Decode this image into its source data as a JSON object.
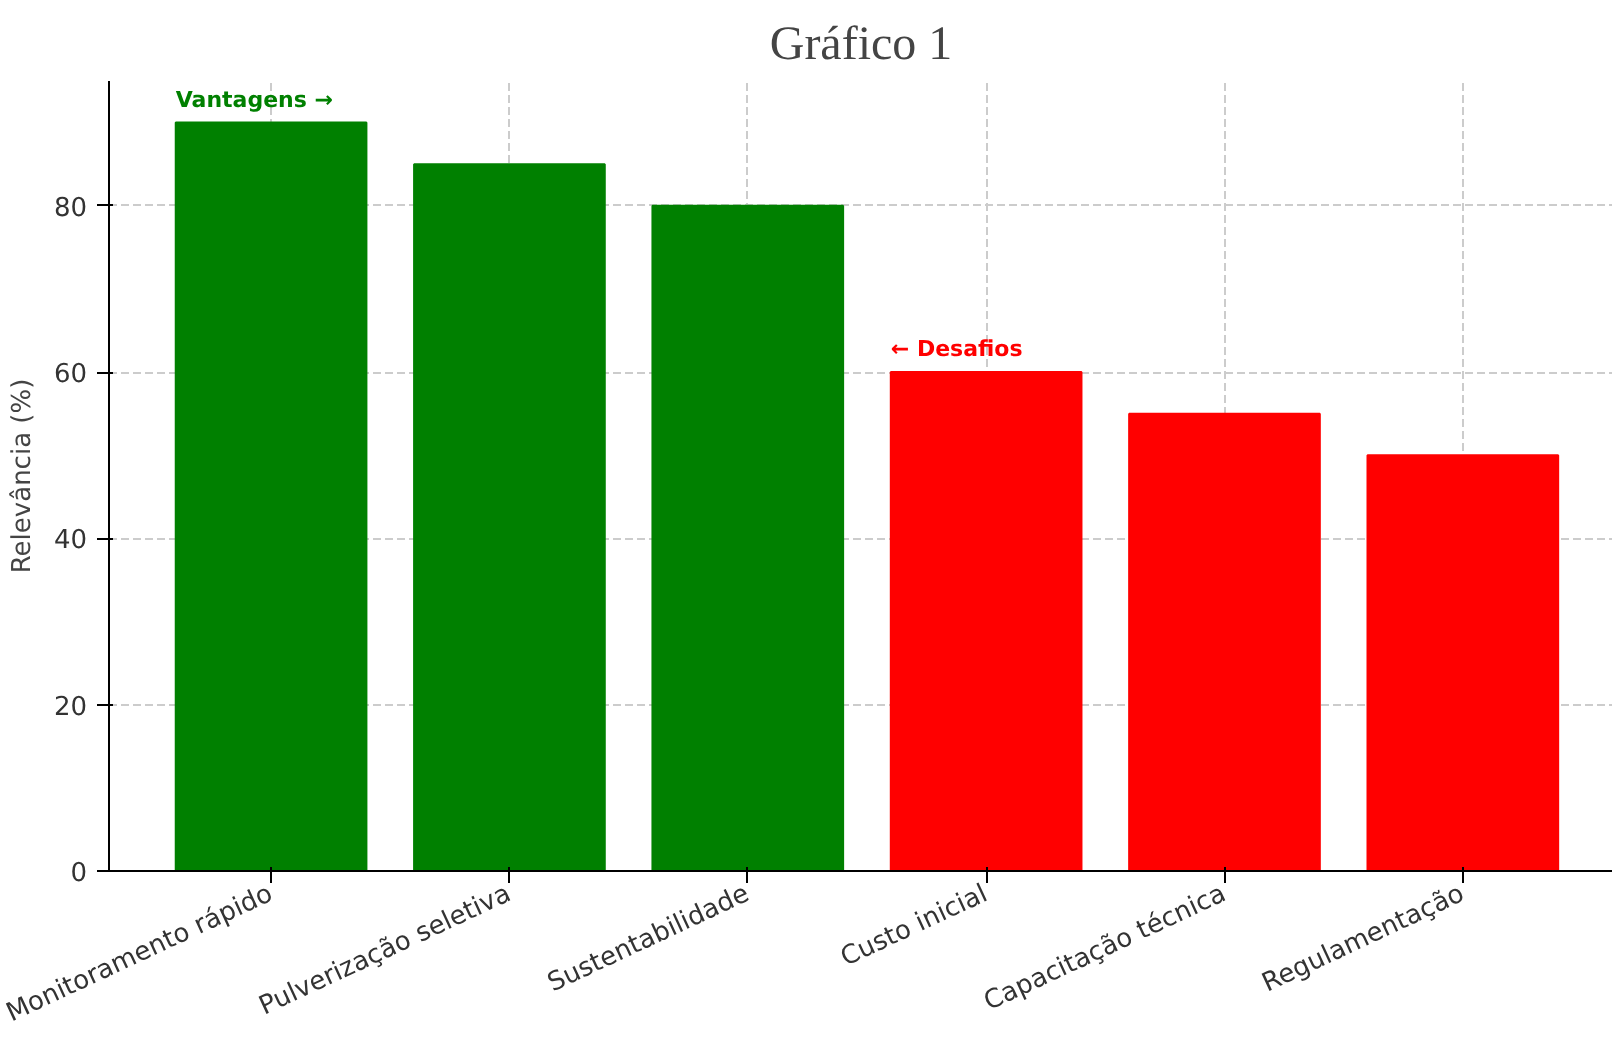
{
  "chart_data": {
    "type": "bar",
    "title": "Gráfico 1",
    "ylabel": "Relevância (%)",
    "categories": [
      "Monitoramento rápido",
      "Pulverização seletiva",
      "Sustentabilidade",
      "Custo inicial",
      "Capacitação técnica",
      "Regulamentação"
    ],
    "values": [
      90,
      85,
      80,
      60,
      55,
      50
    ],
    "colors": [
      "#008000",
      "#008000",
      "#008000",
      "#ff0000",
      "#ff0000",
      "#ff0000"
    ],
    "ylim": [
      0,
      95
    ],
    "yticks": [
      0,
      20,
      40,
      60,
      80
    ],
    "grid": true,
    "annotations": [
      "Vantagens →",
      "← Desafios"
    ]
  }
}
